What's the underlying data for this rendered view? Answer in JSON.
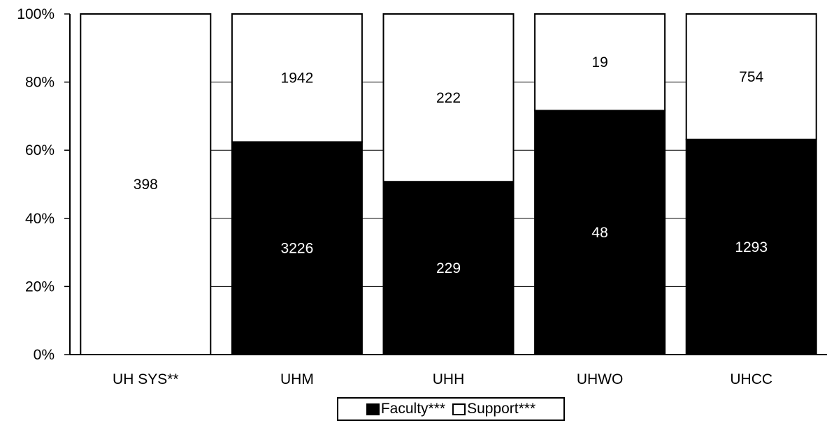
{
  "chart_data": {
    "type": "bar",
    "stacked": "percent",
    "categories": [
      "UH SYS**",
      "UHM",
      "UHH",
      "UHWO",
      "UHCC"
    ],
    "series": [
      {
        "name": "Faculty***",
        "values": [
          0,
          3226,
          229,
          48,
          1293
        ],
        "color": "#000000",
        "label_color": "#ffffff"
      },
      {
        "name": "Support***",
        "values": [
          398,
          1942,
          222,
          19,
          754
        ],
        "color": "#ffffff",
        "label_color": "#000000"
      }
    ],
    "ylim": [
      0,
      100
    ],
    "yticks": [
      "0%",
      "20%",
      "40%",
      "60%",
      "80%",
      "100%"
    ],
    "legend": "bottom-center",
    "grid": false
  }
}
